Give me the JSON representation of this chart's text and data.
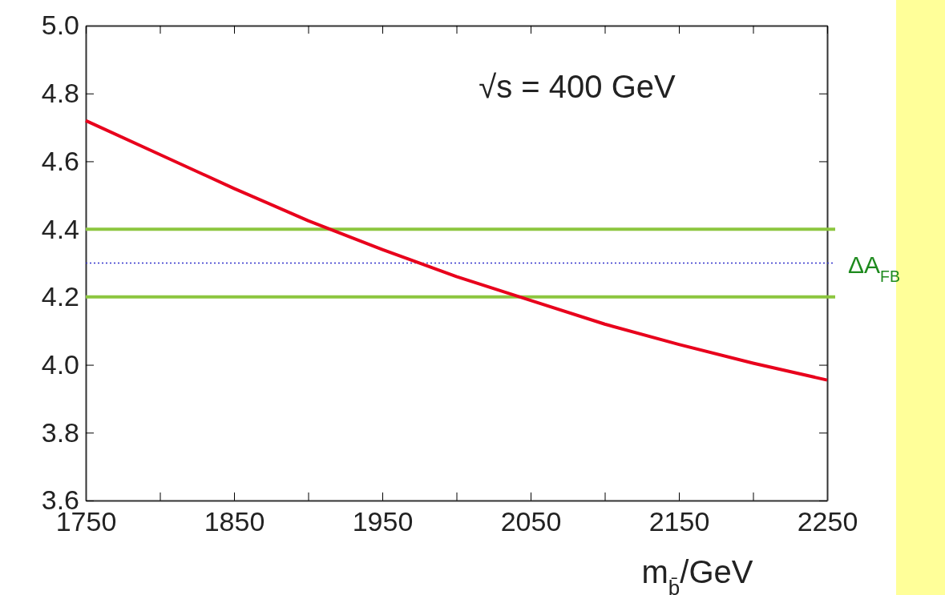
{
  "chart_data": {
    "type": "line",
    "xlabel": "m$_{b̄}$/GeV",
    "x": [
      1750,
      1800,
      1850,
      1900,
      1950,
      2000,
      2050,
      2100,
      2150,
      2200,
      2250
    ],
    "series": [
      {
        "color": "#e8001c",
        "values": [
          4.72,
          4.62,
          4.52,
          4.425,
          4.34,
          4.26,
          4.19,
          4.12,
          4.06,
          4.005,
          3.955
        ]
      }
    ],
    "xlim": [
      1750,
      2250
    ],
    "ylim": [
      3.6,
      5.0
    ],
    "xticks": [
      1750,
      {
        "value": 1800,
        "label": null
      },
      1850,
      {
        "value": 1900,
        "label": null
      },
      1950,
      {
        "value": 2000,
        "label": null
      },
      2050,
      {
        "value": 2100,
        "label": null
      },
      2150,
      {
        "value": 2200,
        "label": null
      },
      2250
    ],
    "yticks": [
      3.6,
      3.8,
      {
        "value": 4,
        "label": "4.0"
      },
      4.2,
      4.4,
      4.6,
      4.8,
      {
        "value": 5,
        "label": "5.0"
      }
    ],
    "ref_lines": [
      {
        "axis": "y",
        "value": 4.4,
        "color": "#8cc63f",
        "line_style": "solid"
      },
      {
        "axis": "y",
        "value": 4.3,
        "color": "#3333cc",
        "line_style": "dotted",
        "label": "ΔA$_{FB}$"
      },
      {
        "axis": "y",
        "value": 4.2,
        "color": "#8cc63f",
        "line_style": "solid"
      }
    ],
    "annotations": [
      "√s = 400 GeV"
    ],
    "grid": false,
    "marker": "none",
    "line_style": "solid"
  }
}
